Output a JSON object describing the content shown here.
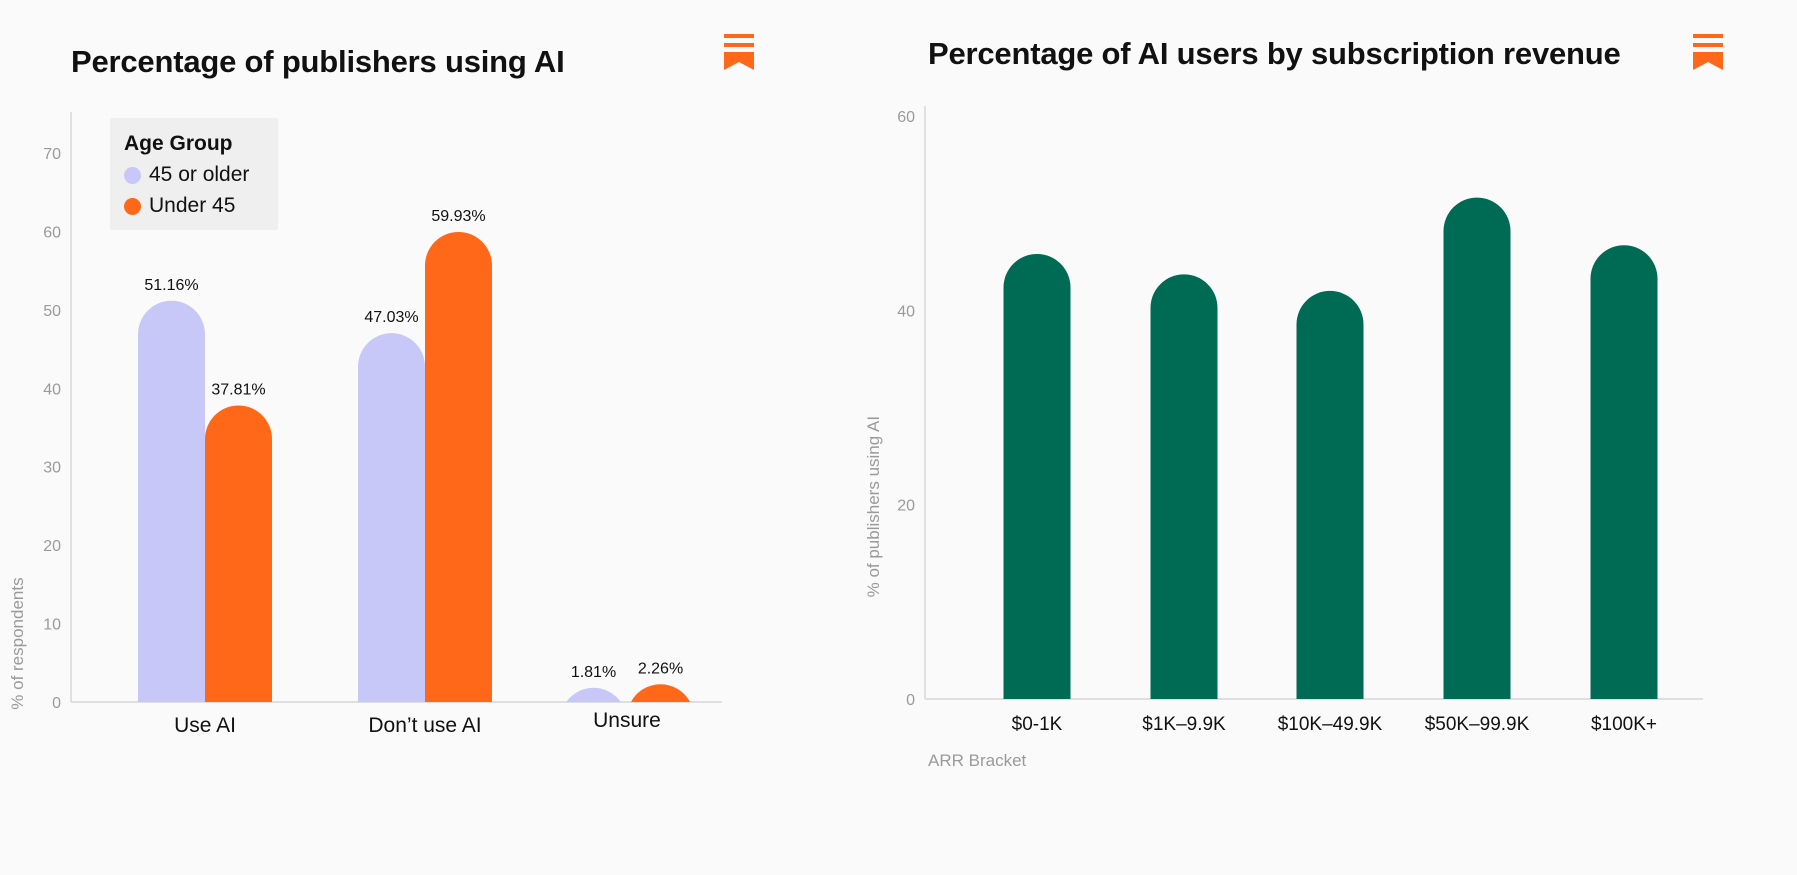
{
  "brand_color": "#ff6719",
  "icon": "bookmark-icon",
  "chart_data": [
    {
      "type": "bar",
      "title": "Percentage of publishers using AI",
      "ylabel": "% of respondents",
      "xlabel": "",
      "ylim": [
        0,
        75
      ],
      "yticks": [
        0,
        10,
        20,
        30,
        40,
        50,
        60,
        70
      ],
      "categories": [
        "Use AI",
        "Don’t use AI",
        "Unsure"
      ],
      "legend": {
        "title": "Age Group",
        "position": "top-left"
      },
      "series": [
        {
          "name": "45 or older",
          "color": "#c8c8f8",
          "values": [
            51.16,
            47.03,
            1.81
          ],
          "labels": [
            "51.16%",
            "47.03%",
            "1.81%"
          ]
        },
        {
          "name": "Under 45",
          "color": "#ff6719",
          "values": [
            37.81,
            59.93,
            2.26
          ],
          "labels": [
            "37.81%",
            "59.93%",
            "2.26%"
          ]
        }
      ],
      "grid": false
    },
    {
      "type": "bar",
      "title": "Percentage of AI users by subscription revenue",
      "ylabel": "% of publishers using AI",
      "xlabel": "ARR Bracket",
      "ylim": [
        0,
        60
      ],
      "yticks": [
        0,
        20,
        40,
        60
      ],
      "categories": [
        "$0-1K",
        "$1K–9.9K",
        "$10K–49.9K",
        "$50K–99.9K",
        "$100K+"
      ],
      "series": [
        {
          "color": "#006b55",
          "values": [
            45.8,
            43.7,
            42.0,
            51.6,
            46.7
          ]
        }
      ],
      "grid": false
    }
  ]
}
